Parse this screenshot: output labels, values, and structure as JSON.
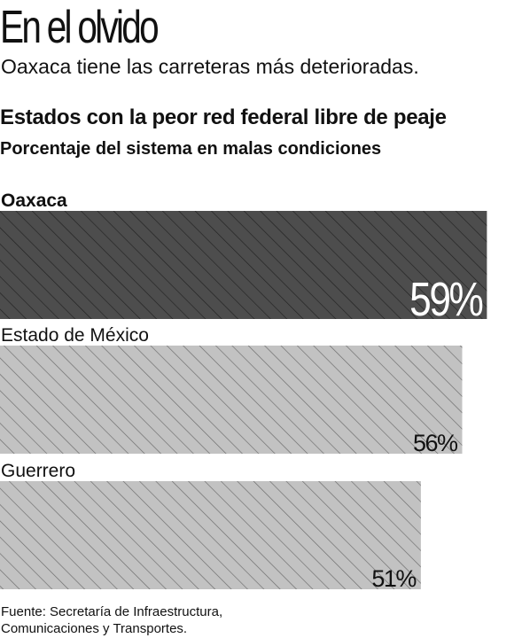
{
  "headline": "En el olvido",
  "deck": "Oaxaca tiene las carreteras más deterioradas.",
  "colors": {
    "highlight_fill": "#4d4d4d",
    "highlight_hatch": "#222222",
    "base_fill": "#c2c2c2",
    "base_hatch": "#6a6a6a",
    "text": "#111111"
  },
  "chart_data": {
    "type": "bar",
    "orientation": "horizontal",
    "title": "Estados con la peor red federal libre de peaje",
    "subtitle": "Porcentaje del sistema en malas condiciones",
    "categories": [
      "Oaxaca",
      "Estado de México",
      "Guerrero"
    ],
    "values": [
      59,
      56,
      51
    ],
    "value_labels": [
      "59%",
      "56%",
      "51%"
    ],
    "unit": "%",
    "highlight": "Oaxaca",
    "xlim": [
      0,
      64
    ],
    "grid": false,
    "legend": "none"
  },
  "source": {
    "line1": "Fuente: Secretaría de Infraestructura,",
    "line2": "Comunicaciones y Transportes."
  }
}
